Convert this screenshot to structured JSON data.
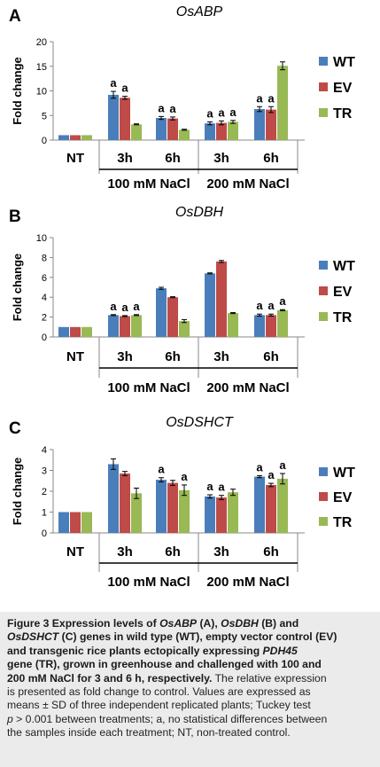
{
  "chart_data": [
    {
      "type": "bar",
      "panel_letter": "A",
      "title": "OsABP",
      "ylabel": "Fold change",
      "ylim": [
        0,
        20
      ],
      "yticks": [
        0,
        5,
        10,
        15,
        20
      ],
      "categories": [
        "NT",
        "3h",
        "6h",
        "3h",
        "6h"
      ],
      "group_labels": [
        "100 mM NaCl",
        "200 mM NaCl"
      ],
      "grid": false,
      "legend_position": "right",
      "series": [
        {
          "name": "WT",
          "values": [
            1.0,
            9.2,
            4.5,
            3.4,
            6.3
          ],
          "errors": [
            0,
            0.7,
            0.3,
            0.3,
            0.5
          ]
        },
        {
          "name": "EV",
          "values": [
            1.0,
            8.6,
            4.4,
            3.5,
            6.2
          ],
          "errors": [
            0,
            0.3,
            0.3,
            0.4,
            0.6
          ]
        },
        {
          "name": "TR",
          "values": [
            1.0,
            3.2,
            2.1,
            3.7,
            15.1
          ],
          "errors": [
            0,
            0.1,
            0.1,
            0.3,
            0.8
          ]
        }
      ],
      "annotations": [
        {
          "group": 1,
          "series": 0,
          "text": "a"
        },
        {
          "group": 1,
          "series": 1,
          "text": "a"
        },
        {
          "group": 2,
          "series": 0,
          "text": "a"
        },
        {
          "group": 2,
          "series": 1,
          "text": "a"
        },
        {
          "group": 3,
          "series": 0,
          "text": "a"
        },
        {
          "group": 3,
          "series": 1,
          "text": "a"
        },
        {
          "group": 3,
          "series": 2,
          "text": "a"
        },
        {
          "group": 4,
          "series": 0,
          "text": "a"
        },
        {
          "group": 4,
          "series": 1,
          "text": "a"
        }
      ]
    },
    {
      "type": "bar",
      "panel_letter": "B",
      "title": "OsDBH",
      "ylabel": "Fold change",
      "ylim": [
        0,
        10
      ],
      "yticks": [
        0,
        2,
        4,
        6,
        8,
        10
      ],
      "categories": [
        "NT",
        "3h",
        "6h",
        "3h",
        "6h"
      ],
      "group_labels": [
        "100 mM NaCl",
        "200 mM NaCl"
      ],
      "grid": false,
      "legend_position": "right",
      "series": [
        {
          "name": "WT",
          "values": [
            1.0,
            2.2,
            4.9,
            6.4,
            2.2
          ],
          "errors": [
            0,
            0.05,
            0.1,
            0.05,
            0.1
          ]
        },
        {
          "name": "EV",
          "values": [
            1.0,
            2.1,
            4.0,
            7.6,
            2.2
          ],
          "errors": [
            0,
            0.05,
            0.05,
            0.1,
            0.1
          ]
        },
        {
          "name": "TR",
          "values": [
            1.0,
            2.2,
            1.6,
            2.4,
            2.7
          ],
          "errors": [
            0,
            0.05,
            0.15,
            0.05,
            0.05
          ]
        }
      ],
      "annotations": [
        {
          "group": 1,
          "series": 0,
          "text": "a"
        },
        {
          "group": 1,
          "series": 1,
          "text": "a"
        },
        {
          "group": 1,
          "series": 2,
          "text": "a"
        },
        {
          "group": 4,
          "series": 0,
          "text": "a"
        },
        {
          "group": 4,
          "series": 1,
          "text": "a"
        },
        {
          "group": 4,
          "series": 2,
          "text": "a"
        }
      ]
    },
    {
      "type": "bar",
      "panel_letter": "C",
      "title": "OsDSHCT",
      "ylabel": "Fold change",
      "ylim": [
        0,
        4
      ],
      "yticks": [
        0,
        1,
        2,
        3,
        4
      ],
      "categories": [
        "NT",
        "3h",
        "6h",
        "3h",
        "6h"
      ],
      "group_labels": [
        "100 mM NaCl",
        "200 mM NaCl"
      ],
      "grid": false,
      "legend_position": "right",
      "series": [
        {
          "name": "WT",
          "values": [
            1.0,
            3.3,
            2.55,
            1.75,
            2.7
          ],
          "errors": [
            0,
            0.25,
            0.1,
            0.08,
            0.05
          ]
        },
        {
          "name": "EV",
          "values": [
            1.0,
            2.85,
            2.4,
            1.7,
            2.3
          ],
          "errors": [
            0,
            0.1,
            0.12,
            0.1,
            0.08
          ]
        },
        {
          "name": "TR",
          "values": [
            1.0,
            1.9,
            2.05,
            1.95,
            2.6
          ],
          "errors": [
            0,
            0.25,
            0.25,
            0.15,
            0.25
          ]
        }
      ],
      "annotations": [
        {
          "group": 2,
          "series": 0,
          "text": "a"
        },
        {
          "group": 2,
          "series": 2,
          "text": "a"
        },
        {
          "group": 3,
          "series": 0,
          "text": "a"
        },
        {
          "group": 3,
          "series": 1,
          "text": "a"
        },
        {
          "group": 4,
          "series": 0,
          "text": "a"
        },
        {
          "group": 4,
          "series": 1,
          "text": "a"
        },
        {
          "group": 4,
          "series": 2,
          "text": "a"
        }
      ]
    }
  ],
  "colors": {
    "WT": "#4a7ebb",
    "EV": "#be4b48",
    "TR": "#98b954"
  },
  "caption": {
    "fig_label": "Figure 3",
    "bold_1": "Expression levels of ",
    "gene_1": "OsABP",
    "bold_2": " (A), ",
    "gene_2": "OsDBH",
    "bold_3": " (B) and",
    "gene_3": "OsDSHCT",
    "bold_4": " (C) genes in wild type (WT), empty vector control (EV)",
    "bold_5": "and transgenic rice plants ectopically expressing ",
    "gene_4": "PDH45",
    "bold_6": "gene (TR), grown in greenhouse and challenged with 100 and",
    "bold_7": "200 mM NaCl for 3 and 6 h, respectively.",
    "text_1": " The relative expression",
    "text_2": "is presented as fold change to control. Values are expressed as",
    "text_3": "means ± SD of three independent replicated plants; Tuckey test",
    "text_4_p": "p",
    "text_4": " > 0.001 between treatments; a, no statistical differences between",
    "text_5": "the samples inside each treatment; NT, non-treated control."
  }
}
